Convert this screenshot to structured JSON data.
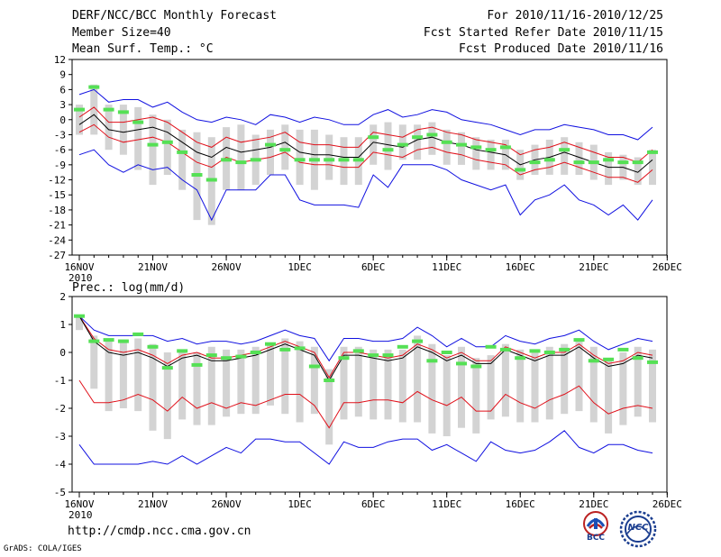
{
  "header": {
    "title": "DERF/NCC/BCC Monthly Forecast",
    "member_size": "Member Size=40",
    "variable": "Mean Surf. Temp.: °C",
    "period": "For 2010/11/16-2010/12/25",
    "fcst_started": "Fcst Started Refer Date 2010/11/15",
    "fcst_produced": "Fcst Produced Date 2010/11/16"
  },
  "footer": {
    "url": "http://cmdp.ncc.cma.gov.cn",
    "credit": "GrADS: COLA/IGES",
    "logo_bcc": "BCC",
    "logo_ncc": "NCC"
  },
  "colors": {
    "obs": "#55e055",
    "box": "#d3d3d3",
    "mean": "#000000",
    "inner": "#e0101a",
    "outer": "#1010e0"
  },
  "chart_data": [
    {
      "type": "line",
      "title": "Mean Surf. Temp.: °C",
      "ylim": [
        -27,
        12
      ],
      "yticks": [
        12,
        9,
        6,
        3,
        0,
        -3,
        -6,
        -9,
        -12,
        -15,
        -18,
        -21,
        -24,
        -27
      ],
      "xlim": [
        0,
        40
      ],
      "xtick_labels": [
        "16NOV",
        "21NOV",
        "26NOV",
        "1DEC",
        "6DEC",
        "11DEC",
        "16DEC",
        "21DEC",
        "26DEC"
      ],
      "year_label": "2010",
      "days": 40,
      "series": [
        {
          "name": "mean",
          "values": [
            -1,
            1,
            -2,
            -2.5,
            -2,
            -1.5,
            -2.5,
            -4.5,
            -6.5,
            -7.5,
            -5.5,
            -6.5,
            -6,
            -5.5,
            -4.5,
            -6.5,
            -7,
            -7,
            -7.5,
            -7.5,
            -4.5,
            -5,
            -5.5,
            -4,
            -3.5,
            -4.5,
            -5,
            -6,
            -6.5,
            -7,
            -9,
            -8,
            -7.5,
            -6.5,
            -7.5,
            -8.5,
            -9.5,
            -9.5,
            -10.5,
            -8
          ]
        },
        {
          "name": "inner_upper",
          "values": [
            0.5,
            2.5,
            -0.5,
            -0.5,
            0,
            0.5,
            -0.5,
            -2.5,
            -4.5,
            -5.5,
            -3.5,
            -4.5,
            -4,
            -3.5,
            -2.5,
            -4.5,
            -5,
            -5,
            -5.5,
            -5.5,
            -2.5,
            -3,
            -3.5,
            -2,
            -1.5,
            -2.5,
            -3,
            -4,
            -4.5,
            -5,
            -7,
            -6,
            -5.5,
            -4.5,
            -5.5,
            -6.5,
            -7.5,
            -7.5,
            -8.5,
            -6
          ]
        },
        {
          "name": "inner_lower",
          "values": [
            -2.5,
            -1,
            -3.5,
            -4.5,
            -4,
            -3.5,
            -4.5,
            -6.5,
            -8.5,
            -9.5,
            -7.5,
            -8.5,
            -8,
            -7.5,
            -6.5,
            -8.5,
            -9,
            -9,
            -9.5,
            -9.5,
            -6.5,
            -7,
            -7.5,
            -6,
            -5.5,
            -6.5,
            -7,
            -8,
            -8.5,
            -9,
            -11,
            -10,
            -9.5,
            -8.5,
            -9.5,
            -10.5,
            -11.5,
            -11.5,
            -12.5,
            -10
          ]
        },
        {
          "name": "outer_upper",
          "values": [
            5,
            6,
            3.5,
            4,
            4,
            2.5,
            3.5,
            1.5,
            0,
            -0.5,
            0.5,
            0,
            -1,
            1,
            0.5,
            -0.5,
            0.5,
            0,
            -1,
            -1,
            1,
            2,
            0.5,
            1,
            2,
            1.5,
            0,
            -0.5,
            -1,
            -2,
            -3,
            -2,
            -2,
            -1,
            -1.5,
            -2,
            -3,
            -3,
            -4,
            -1.5
          ]
        },
        {
          "name": "outer_lower",
          "values": [
            -7,
            -6,
            -9,
            -10.5,
            -9,
            -10,
            -9.5,
            -12,
            -14,
            -20,
            -14,
            -14,
            -14,
            -11,
            -11,
            -16,
            -17,
            -17,
            -17,
            -17.5,
            -11,
            -13.5,
            -9,
            -9,
            -9,
            -10,
            -12,
            -13,
            -14,
            -13,
            -19,
            -16,
            -15,
            -13,
            -16,
            -17,
            -19,
            -17,
            -20,
            -16
          ]
        },
        {
          "name": "obs",
          "values": [
            2,
            6.5,
            2,
            1.5,
            -0.5,
            -5,
            -4.5,
            -6.5,
            -11,
            -12,
            -8,
            -8.5,
            -8,
            -5,
            -6,
            -8,
            -8,
            -8,
            -8,
            -8,
            -3.5,
            -6,
            -5,
            -3.5,
            -3,
            -4.5,
            -5,
            -5.5,
            -6,
            -5.5,
            -10,
            -8.5,
            -8,
            -6,
            -8.5,
            -8.5,
            -8,
            -8.5,
            -8.5,
            -6.5
          ]
        },
        {
          "name": "box_high",
          "values": [
            3,
            7,
            3,
            3,
            2.5,
            1,
            0,
            -2,
            -2.5,
            -3.5,
            -1.5,
            -1,
            -3,
            -2,
            -1,
            -2,
            -2,
            -3,
            -3.5,
            -3.5,
            -1,
            -0.5,
            -1,
            -1,
            -0.5,
            -2,
            -2.5,
            -3.5,
            -4,
            -4,
            -6,
            -5,
            -4,
            -3.5,
            -4.5,
            -5,
            -6.5,
            -7,
            -7.5,
            -6
          ]
        },
        {
          "name": "box_low",
          "values": [
            -3,
            -3,
            -6,
            -7,
            -10,
            -13,
            -11,
            -14,
            -20,
            -21,
            -14,
            -14,
            -13,
            -11,
            -10,
            -13,
            -14,
            -12,
            -13,
            -13,
            -9,
            -10,
            -8,
            -8,
            -7,
            -9,
            -9,
            -10,
            -10,
            -10,
            -12,
            -11,
            -11,
            -11,
            -11,
            -12,
            -13,
            -12,
            -13,
            -13
          ]
        }
      ]
    },
    {
      "type": "line",
      "title": "Prec.: log(mm/d)",
      "ylim": [
        -5,
        2
      ],
      "yticks": [
        2,
        1,
        0,
        -1,
        -2,
        -3,
        -4,
        -5
      ],
      "xlim": [
        0,
        40
      ],
      "xtick_labels": [
        "16NOV",
        "21NOV",
        "26NOV",
        "1DEC",
        "6DEC",
        "11DEC",
        "16DEC",
        "21DEC",
        "26DEC"
      ],
      "year_label": "2010",
      "days": 40,
      "series": [
        {
          "name": "mean",
          "values": [
            1.3,
            0.4,
            0,
            -0.1,
            0,
            -0.2,
            -0.5,
            -0.2,
            -0.1,
            -0.3,
            -0.3,
            -0.2,
            -0.1,
            0.1,
            0.3,
            0.1,
            -0.1,
            -1,
            -0.1,
            -0.1,
            -0.2,
            -0.3,
            -0.2,
            0.2,
            0,
            -0.3,
            -0.1,
            -0.4,
            -0.4,
            0.1,
            -0.1,
            -0.3,
            -0.1,
            -0.1,
            0.2,
            -0.2,
            -0.5,
            -0.4,
            -0.1,
            -0.2
          ]
        },
        {
          "name": "inner_upper",
          "values": [
            1.3,
            0.5,
            0.1,
            0,
            0.1,
            -0.1,
            -0.4,
            -0.1,
            0,
            -0.2,
            -0.2,
            -0.1,
            0,
            0.2,
            0.4,
            0.2,
            0,
            -0.9,
            0,
            0,
            -0.1,
            -0.2,
            -0.1,
            0.3,
            0.1,
            -0.2,
            0,
            -0.3,
            -0.3,
            0.2,
            0,
            -0.2,
            0,
            0,
            0.3,
            -0.1,
            -0.4,
            -0.3,
            0,
            -0.1
          ]
        },
        {
          "name": "inner_lower",
          "values": [
            -1,
            -1.8,
            -1.8,
            -1.7,
            -1.5,
            -1.7,
            -2.1,
            -1.6,
            -2,
            -1.8,
            -2,
            -1.8,
            -1.9,
            -1.7,
            -1.5,
            -1.5,
            -1.9,
            -2.7,
            -1.8,
            -1.8,
            -1.7,
            -1.7,
            -1.8,
            -1.4,
            -1.7,
            -1.9,
            -1.6,
            -2.1,
            -2.1,
            -1.5,
            -1.8,
            -2,
            -1.7,
            -1.5,
            -1.2,
            -1.8,
            -2.2,
            -2,
            -1.9,
            -2
          ]
        },
        {
          "name": "outer_upper",
          "values": [
            1.3,
            0.8,
            0.6,
            0.6,
            0.6,
            0.6,
            0.4,
            0.5,
            0.3,
            0.4,
            0.4,
            0.3,
            0.4,
            0.6,
            0.8,
            0.6,
            0.5,
            -0.3,
            0.5,
            0.5,
            0.4,
            0.4,
            0.5,
            0.9,
            0.6,
            0.2,
            0.5,
            0.2,
            0.2,
            0.6,
            0.4,
            0.3,
            0.5,
            0.6,
            0.8,
            0.4,
            0.1,
            0.3,
            0.5,
            0.4
          ]
        },
        {
          "name": "outer_lower",
          "values": [
            -3.3,
            -4,
            -4,
            -4,
            -4,
            -3.9,
            -4,
            -3.7,
            -4,
            -3.7,
            -3.4,
            -3.6,
            -3.1,
            -3.1,
            -3.2,
            -3.2,
            -3.6,
            -4,
            -3.2,
            -3.4,
            -3.4,
            -3.2,
            -3.1,
            -3.1,
            -3.5,
            -3.3,
            -3.6,
            -3.9,
            -3.2,
            -3.5,
            -3.6,
            -3.5,
            -3.2,
            -2.8,
            -3.4,
            -3.6,
            -3.3,
            -3.3,
            -3.5,
            -3.6
          ]
        },
        {
          "name": "obs",
          "values": [
            1.3,
            0.4,
            0.45,
            0.4,
            0.65,
            0.2,
            -0.55,
            0.05,
            -0.45,
            -0.1,
            -0.2,
            -0.15,
            0,
            0.3,
            0.1,
            0.15,
            -0.5,
            -1,
            -0.2,
            0.05,
            -0.1,
            -0.1,
            0.2,
            0.4,
            -0.3,
            0,
            -0.4,
            -0.5,
            0.2,
            0.1,
            -0.2,
            0.05,
            0,
            0.1,
            0.45,
            -0.3,
            -0.25,
            0.1,
            -0.2,
            -0.35
          ]
        },
        {
          "name": "box_high",
          "values": [
            1.3,
            0.6,
            0.4,
            0.4,
            0.5,
            0.3,
            0,
            0.1,
            0,
            0.2,
            0.1,
            0.1,
            0.2,
            0.3,
            0.5,
            0.4,
            0.2,
            -0.6,
            0.2,
            0.2,
            0.1,
            0.1,
            0.1,
            0.6,
            0.3,
            -0.1,
            0.2,
            -0.2,
            -0.1,
            0.3,
            0.1,
            0.1,
            0.2,
            0.3,
            0.5,
            0.2,
            -0.2,
            0,
            0.2,
            0.1
          ]
        },
        {
          "name": "box_low",
          "values": [
            0.8,
            -1.3,
            -2.1,
            -2,
            -2.1,
            -2.8,
            -3.1,
            -2.4,
            -2.6,
            -2.6,
            -2.3,
            -2.2,
            -2.2,
            -1.9,
            -2.2,
            -2.5,
            -2.2,
            -3.3,
            -2.4,
            -2.3,
            -2.4,
            -2.4,
            -2.5,
            -2.5,
            -2.9,
            -3,
            -2.7,
            -2.9,
            -2.4,
            -2.3,
            -2.5,
            -2.5,
            -2.4,
            -2.2,
            -2.1,
            -2.5,
            -2.9,
            -2.6,
            -2.3,
            -2.5
          ]
        }
      ]
    }
  ]
}
